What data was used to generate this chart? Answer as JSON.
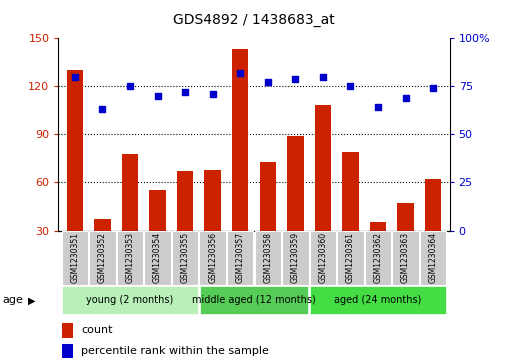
{
  "title": "GDS4892 / 1438683_at",
  "samples": [
    "GSM1230351",
    "GSM1230352",
    "GSM1230353",
    "GSM1230354",
    "GSM1230355",
    "GSM1230356",
    "GSM1230357",
    "GSM1230358",
    "GSM1230359",
    "GSM1230360",
    "GSM1230361",
    "GSM1230362",
    "GSM1230363",
    "GSM1230364"
  ],
  "counts": [
    130,
    37,
    78,
    55,
    67,
    68,
    143,
    73,
    89,
    108,
    79,
    35,
    47,
    62
  ],
  "percentiles": [
    80,
    63,
    75,
    70,
    72,
    71,
    82,
    77,
    79,
    80,
    75,
    64,
    69,
    74
  ],
  "ylim_left": [
    30,
    150
  ],
  "ylim_right": [
    0,
    100
  ],
  "yticks_left": [
    30,
    60,
    90,
    120,
    150
  ],
  "yticks_right": [
    0,
    25,
    50,
    75,
    100
  ],
  "ytick_right_labels": [
    "0",
    "25",
    "50",
    "75",
    "100%"
  ],
  "bar_color": "#cc2200",
  "dot_color": "#0000cc",
  "groups": [
    {
      "label": "young (2 months)",
      "start": 0,
      "end": 5,
      "color": "#b8f0b8"
    },
    {
      "label": "middle aged (12 months)",
      "start": 5,
      "end": 9,
      "color": "#55cc55"
    },
    {
      "label": "aged (24 months)",
      "start": 9,
      "end": 14,
      "color": "#44dd44"
    }
  ],
  "age_label": "age",
  "legend_count_label": "count",
  "legend_percentile_label": "percentile rank within the sample",
  "tick_area_color": "#cccccc",
  "gridline_ticks": [
    60,
    90,
    120
  ]
}
